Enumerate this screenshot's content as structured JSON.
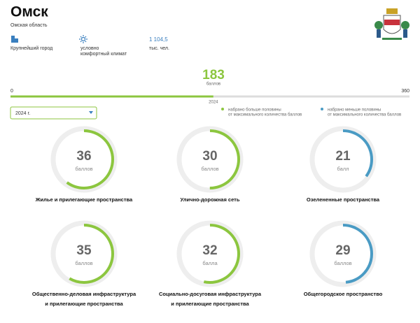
{
  "header": {
    "title": "Омск",
    "subtitle": "Омская область"
  },
  "facts": [
    {
      "lines": [
        "Крупнейший город"
      ]
    },
    {
      "lines": [
        "условно",
        "комфортный климат"
      ]
    },
    {
      "value": "1 104,5",
      "lines": [
        "тыс. чел."
      ]
    }
  ],
  "score": {
    "value": 183,
    "unit": "баллов",
    "min": 0,
    "max": 360,
    "year": "2024"
  },
  "select": "2024 г.",
  "legend": [
    {
      "color": "#8cc63f",
      "lines": [
        "набрано больше половины",
        "от максимального количества баллов"
      ]
    },
    {
      "color": "#4a9bc4",
      "lines": [
        "набрано меньше половины",
        "от максимального количества баллов"
      ]
    }
  ],
  "categories": [
    {
      "value": 36,
      "unit": "баллов",
      "lines": [
        "Жилье и прилегающие пространства"
      ]
    },
    {
      "value": 30,
      "unit": "баллов",
      "lines": [
        "Улично-дорожная сеть"
      ]
    },
    {
      "value": 21,
      "unit": "балл",
      "lines": [
        "Озелененные пространства"
      ]
    },
    {
      "value": 35,
      "unit": "баллов",
      "lines": [
        "Общественно-деловая инфраструктура",
        "и прилегающие пространства"
      ]
    },
    {
      "value": 32,
      "unit": "балла",
      "lines": [
        "Социально-досуговая инфраструктура",
        "и прилегающие пространства"
      ]
    },
    {
      "value": 29,
      "unit": "баллов",
      "lines": [
        "Общегородское пространство"
      ]
    }
  ]
}
